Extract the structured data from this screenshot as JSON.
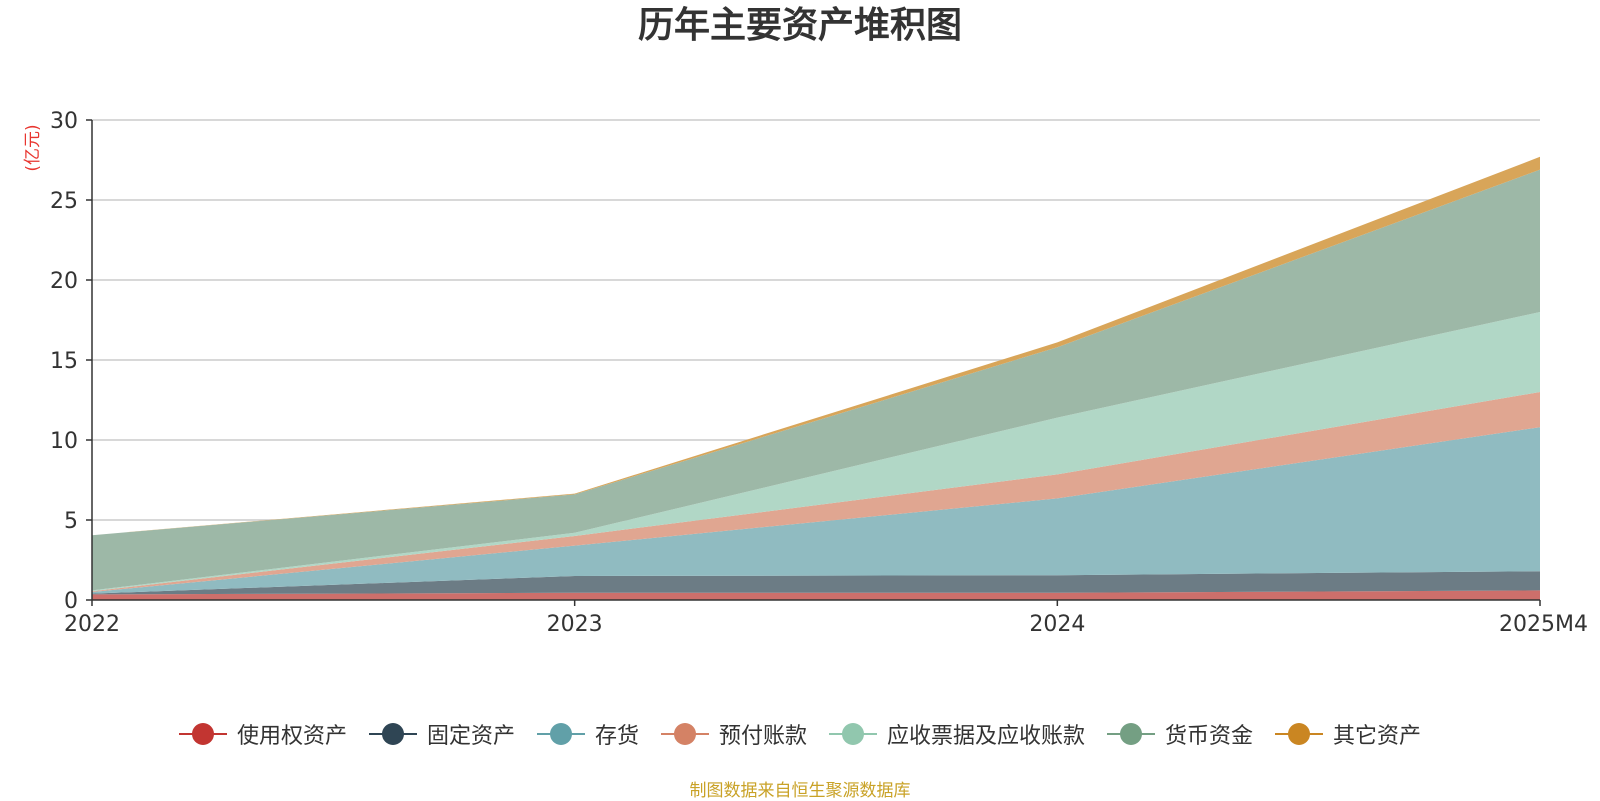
{
  "chart_data": {
    "type": "area",
    "stacked": true,
    "title": "历年主要资产堆积图",
    "ylabel": "(亿元)",
    "xlabel": "",
    "x": [
      "2022",
      "2023",
      "2024",
      "2025M4"
    ],
    "ylim": [
      0,
      30
    ],
    "yticks": [
      0,
      5,
      10,
      15,
      20,
      25,
      30
    ],
    "grid": true,
    "legend_position": "bottom",
    "series": [
      {
        "name": "使用权资产",
        "color": "#c23531",
        "fill": "#cd6f6b",
        "values": [
          0.35,
          0.45,
          0.45,
          0.6
        ]
      },
      {
        "name": "固定资产",
        "color": "#2f4554",
        "fill": "#6c7c85",
        "values": [
          0.05,
          1.05,
          1.1,
          1.2
        ]
      },
      {
        "name": "存货",
        "color": "#61a0a8",
        "fill": "#90bbc1",
        "values": [
          0.1,
          1.9,
          4.8,
          9.0
        ]
      },
      {
        "name": "预付账款",
        "color": "#d48265",
        "fill": "#e0a691",
        "values": [
          0.05,
          0.6,
          1.5,
          2.2
        ]
      },
      {
        "name": "应收票据及应收账款",
        "color": "#91c7ae",
        "fill": "#b1d7c6",
        "values": [
          0.05,
          0.2,
          3.55,
          5.0
        ]
      },
      {
        "name": "货币资金",
        "color": "#749f83",
        "fill": "#9db8a7",
        "values": [
          3.45,
          2.4,
          4.4,
          8.9
        ]
      },
      {
        "name": "其它资产",
        "color": "#ca8622",
        "fill": "#d8a559",
        "values": [
          0.0,
          0.05,
          0.3,
          0.8
        ]
      }
    ]
  },
  "source_note": "制图数据来自恒生聚源数据库",
  "source_color": "#c9a227",
  "ylabel_color": "#e8352f"
}
